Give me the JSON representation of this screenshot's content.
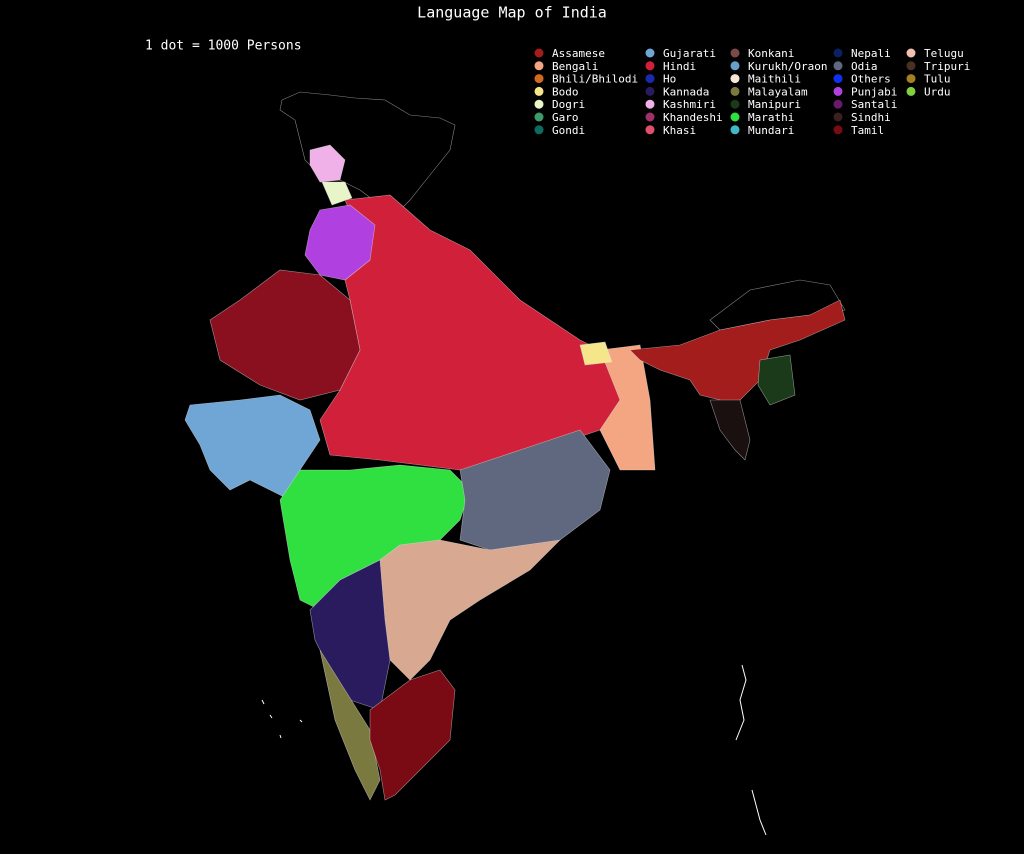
{
  "title": "Language Map of India",
  "note": "1 dot = 1000 Persons",
  "legend": [
    {
      "label": "Assamese",
      "color": "#a31d1d"
    },
    {
      "label": "Bengali",
      "color": "#f4a582"
    },
    {
      "label": "Bhili/Bhilodi",
      "color": "#d2691e"
    },
    {
      "label": "Bodo",
      "color": "#f5e68c"
    },
    {
      "label": "Dogri",
      "color": "#e8f5c8"
    },
    {
      "label": "Garo",
      "color": "#3f9a6a"
    },
    {
      "label": "Gondi",
      "color": "#0f6b5e"
    },
    {
      "label": "Gujarati",
      "color": "#6fa6d6"
    },
    {
      "label": "Hindi",
      "color": "#d1213a"
    },
    {
      "label": "Ho",
      "color": "#1a2ab0"
    },
    {
      "label": "Kannada",
      "color": "#2a1a5e"
    },
    {
      "label": "Kashmiri",
      "color": "#f0b0e8"
    },
    {
      "label": "Khandeshi",
      "color": "#a0306a"
    },
    {
      "label": "Khasi",
      "color": "#e0506a"
    },
    {
      "label": "Konkani",
      "color": "#7a4a4a"
    },
    {
      "label": "Kurukh/Oraon",
      "color": "#6a9ec8"
    },
    {
      "label": "Maithili",
      "color": "#f5e6d8"
    },
    {
      "label": "Malayalam",
      "color": "#7a7a40"
    },
    {
      "label": "Manipuri",
      "color": "#1a3a1a"
    },
    {
      "label": "Marathi",
      "color": "#30e040"
    },
    {
      "label": "Mundari",
      "color": "#40b8c8"
    },
    {
      "label": "Nepali",
      "color": "#0a2060"
    },
    {
      "label": "Odia",
      "color": "#606880"
    },
    {
      "label": "Others",
      "color": "#1030f0"
    },
    {
      "label": "Punjabi",
      "color": "#b040e0"
    },
    {
      "label": "Santali",
      "color": "#6a1a6a"
    },
    {
      "label": "Sindhi",
      "color": "#3a2020"
    },
    {
      "label": "Tamil",
      "color": "#7a0a14"
    },
    {
      "label": "Telugu",
      "color": "#f0c0b0"
    },
    {
      "label": "Tripuri",
      "color": "#4a3020"
    },
    {
      "label": "Tulu",
      "color": "#a08020"
    },
    {
      "label": "Urdu",
      "color": "#80d040"
    }
  ]
}
